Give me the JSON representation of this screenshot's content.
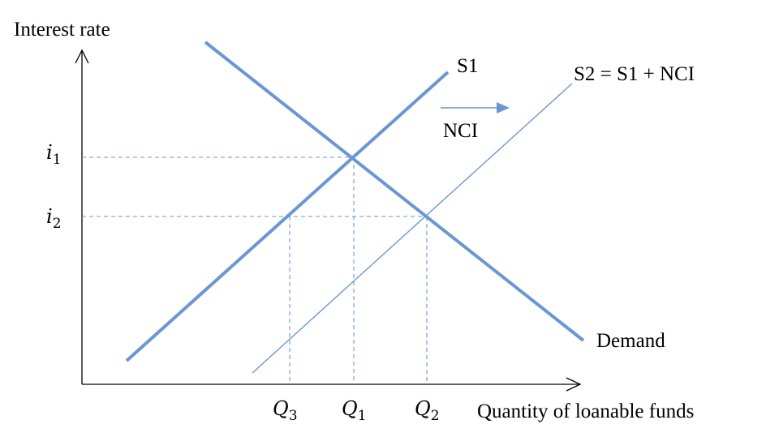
{
  "axes": {
    "y_label": "Interest rate",
    "x_label": "Quantity of loanable funds"
  },
  "curves": {
    "s1_label": "S1",
    "s2_label": "S2 = S1 + NCI",
    "demand_label": "Demand",
    "shift_label": "NCI"
  },
  "rates": {
    "i1": {
      "base": "i",
      "sub": "1"
    },
    "i2": {
      "base": "i",
      "sub": "2"
    }
  },
  "quantities": {
    "q3": {
      "base": "Q",
      "sub": "3"
    },
    "q1": {
      "base": "Q",
      "sub": "1"
    },
    "q2": {
      "base": "Q",
      "sub": "2"
    }
  },
  "colors": {
    "curve": "#6a97d4",
    "axis": "#000000"
  }
}
